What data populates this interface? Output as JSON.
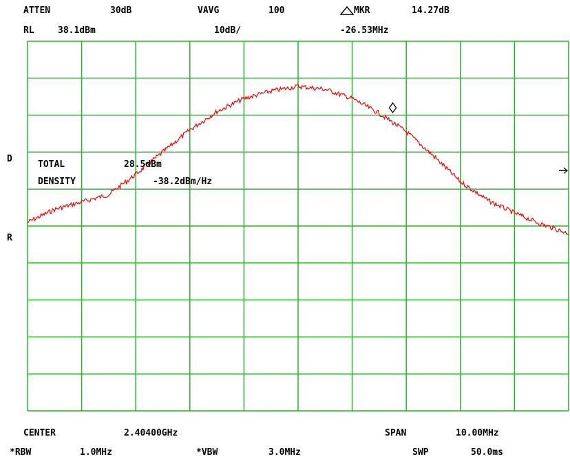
{
  "header": {
    "atten_label": "ATTEN",
    "atten_value": "30dB",
    "vavg_label": "VAVG",
    "vavg_value": "100",
    "mkr_label": "MKR",
    "mkr_value": "14.27dB",
    "rl_label": "RL",
    "rl_value": "38.1dBm",
    "scale": "10dB/",
    "mkr_freq": "-26.53MHz"
  },
  "side": {
    "d_label": "D",
    "r_label": "R"
  },
  "measurement": {
    "total_label": "TOTAL",
    "total_value": "28.5dBm",
    "density_label": "DENSITY",
    "density_value": "-38.2dBm/Hz"
  },
  "footer": {
    "center_label": "CENTER",
    "center_value": "2.40400GHz",
    "span_label": "SPAN",
    "span_value": "10.00MHz",
    "rbw_label": "*RBW",
    "rbw_value": "1.0MHz",
    "vbw_label": "*VBW",
    "vbw_value": "3.0MHz",
    "swp_label": "SWP",
    "swp_value": "50.0ms"
  },
  "colors": {
    "grid": "#22b922",
    "trace": "#ff0000",
    "text": "#000000",
    "background": "#ffffff"
  },
  "chart_data": {
    "type": "line",
    "xlabel": "",
    "ylabel": "",
    "x_divisions": 10,
    "y_divisions": 10,
    "xlim": [
      0,
      10
    ],
    "ylim": [
      0,
      10
    ],
    "grid": true,
    "series": [
      {
        "x": [
          0,
          0.5,
          1,
          1.5,
          2,
          2.5,
          3,
          3.5,
          4,
          4.5,
          5,
          5.5,
          6,
          6.5,
          7,
          7.5,
          8,
          8.5,
          9,
          9.5,
          10
        ],
        "values": [
          5.1,
          5.45,
          5.65,
          5.85,
          6.4,
          7.0,
          7.6,
          8.1,
          8.45,
          8.65,
          8.78,
          8.7,
          8.45,
          8.05,
          7.55,
          6.9,
          6.2,
          5.7,
          5.35,
          5.05,
          4.8
        ]
      }
    ],
    "marker": {
      "symbol": "diamond",
      "x": 6.75,
      "y": 8.2
    },
    "reference_arrow": {
      "y": 6.5
    }
  }
}
